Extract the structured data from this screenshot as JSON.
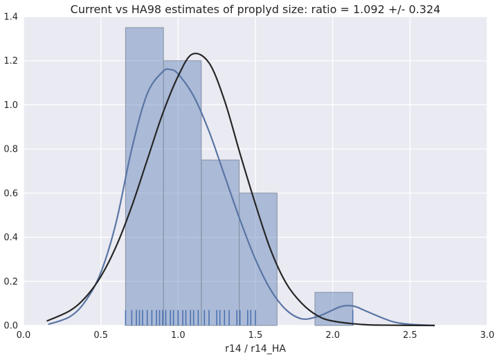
{
  "chart_data": {
    "type": "histogram",
    "title": "Current vs HA98 estimates of proplyd size: ratio = 1.092 +/- 0.324",
    "xlabel": "r14 / r14_HA",
    "ylabel": "",
    "xlim": [
      0.0,
      3.0
    ],
    "ylim": [
      0.0,
      1.4
    ],
    "xticks": [
      0.0,
      0.5,
      1.0,
      1.5,
      2.0,
      2.5,
      3.0
    ],
    "xtick_labels": [
      "0.0",
      "0.5",
      "1.0",
      "1.5",
      "2.0",
      "2.5",
      "3.0"
    ],
    "yticks": [
      0.0,
      0.2,
      0.4,
      0.6,
      0.8,
      1.0,
      1.2,
      1.4
    ],
    "ytick_labels": [
      "0.0",
      "0.2",
      "0.4",
      "0.6",
      "0.8",
      "1.0",
      "1.2",
      "1.4"
    ],
    "grid": true,
    "histogram": {
      "bin_edges": [
        0.66,
        0.905,
        1.15,
        1.395,
        1.64,
        1.885,
        2.13
      ],
      "heights": [
        1.35,
        1.2,
        0.75,
        0.6,
        0.0,
        0.15
      ],
      "color": "#4c72b0"
    },
    "kde_curve": {
      "color": "#5975a4",
      "x": [
        0.16,
        0.3,
        0.4,
        0.5,
        0.6,
        0.7,
        0.8,
        0.9,
        0.95,
        1.0,
        1.1,
        1.2,
        1.3,
        1.4,
        1.5,
        1.6,
        1.7,
        1.8,
        1.9,
        2.0,
        2.05,
        2.1,
        2.15,
        2.2,
        2.3,
        2.4,
        2.5,
        2.66
      ],
      "y": [
        0.005,
        0.04,
        0.11,
        0.24,
        0.47,
        0.8,
        1.05,
        1.15,
        1.16,
        1.14,
        1.04,
        0.88,
        0.68,
        0.48,
        0.3,
        0.16,
        0.07,
        0.03,
        0.04,
        0.07,
        0.085,
        0.09,
        0.085,
        0.07,
        0.04,
        0.015,
        0.005,
        0.0
      ]
    },
    "normal_fit_curve": {
      "color": "#262626",
      "x": [
        0.15,
        0.3,
        0.4,
        0.5,
        0.6,
        0.7,
        0.8,
        0.9,
        1.0,
        1.092,
        1.2,
        1.3,
        1.4,
        1.5,
        1.6,
        1.7,
        1.8,
        1.9,
        2.0,
        2.2,
        2.4,
        2.66
      ],
      "y": [
        0.02,
        0.067,
        0.127,
        0.222,
        0.36,
        0.54,
        0.75,
        0.96,
        1.13,
        1.23,
        1.19,
        1.02,
        0.78,
        0.55,
        0.34,
        0.19,
        0.1,
        0.045,
        0.02,
        0.004,
        0.001,
        0.0
      ]
    },
    "rug": {
      "color": "#4c72b0",
      "height": 0.07,
      "values": [
        0.66,
        0.7,
        0.73,
        0.75,
        0.77,
        0.8,
        0.83,
        0.86,
        0.88,
        0.9,
        0.92,
        0.95,
        0.97,
        1.0,
        1.03,
        1.05,
        1.08,
        1.1,
        1.13,
        1.17,
        1.2,
        1.25,
        1.27,
        1.3,
        1.33,
        1.38,
        1.4,
        1.45,
        1.47,
        1.5,
        2.13
      ]
    },
    "plot_background": "#eaeaf2",
    "grid_color": "#ffffff"
  }
}
